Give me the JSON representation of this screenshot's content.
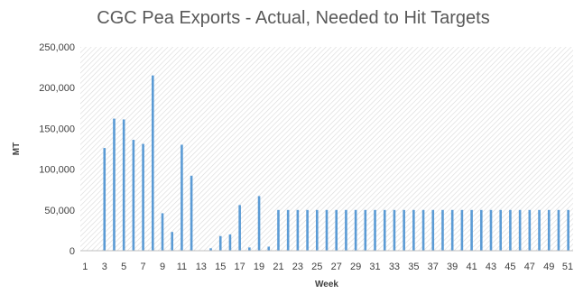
{
  "chart_data": {
    "type": "bar",
    "title": "CGC Pea Exports - Actual, Needed to Hit Targets",
    "xlabel": "Week",
    "ylabel": "MT",
    "ylim": [
      0,
      250000
    ],
    "yticks": [
      0,
      50000,
      100000,
      150000,
      200000,
      250000
    ],
    "ytick_labels": [
      "0",
      "50,000",
      "100,000",
      "150,000",
      "200,000",
      "250,000"
    ],
    "grid": "hatched plot background",
    "bar_color": "#5b9bd5",
    "categories": [
      1,
      2,
      3,
      4,
      5,
      6,
      7,
      8,
      9,
      10,
      11,
      12,
      13,
      14,
      15,
      16,
      17,
      18,
      19,
      20,
      21,
      22,
      23,
      24,
      25,
      26,
      27,
      28,
      29,
      30,
      31,
      32,
      33,
      34,
      35,
      36,
      37,
      38,
      39,
      40,
      41,
      42,
      43,
      44,
      45,
      46,
      47,
      48,
      49,
      50,
      51
    ],
    "xtick_labels": [
      "1",
      "3",
      "5",
      "7",
      "9",
      "11",
      "13",
      "15",
      "17",
      "19",
      "21",
      "23",
      "25",
      "27",
      "29",
      "31",
      "33",
      "35",
      "37",
      "39",
      "41",
      "43",
      "45",
      "47",
      "49",
      "51"
    ],
    "values": [
      0,
      0,
      126000,
      162000,
      161000,
      136000,
      131000,
      215000,
      46000,
      23000,
      130000,
      92000,
      0,
      3000,
      18000,
      20000,
      56000,
      4000,
      67000,
      5000,
      50000,
      50000,
      50000,
      50000,
      50000,
      50000,
      50000,
      50000,
      50000,
      50000,
      50000,
      50000,
      50000,
      50000,
      50000,
      50000,
      50000,
      50000,
      50000,
      50000,
      50000,
      50000,
      50000,
      50000,
      50000,
      50000,
      50000,
      50000,
      50000,
      50000,
      50000
    ]
  }
}
